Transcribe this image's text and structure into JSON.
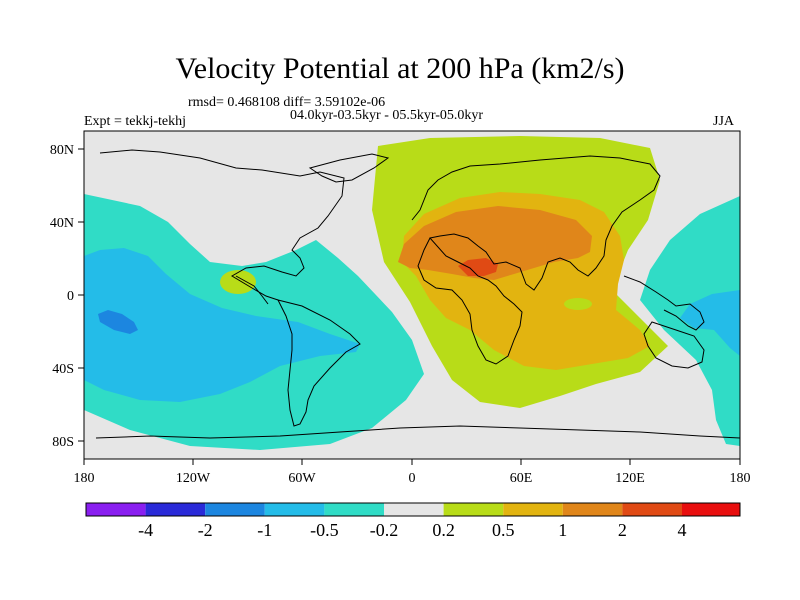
{
  "header": {
    "title": "Velocity Potential at 200 hPa (km2/s)",
    "stats": "rmsd= 0.468108 diff= 3.59102e-06",
    "period": "04.0kyr-03.5kyr - 05.5kyr-05.0kyr",
    "experiment": "Expt = tekkj-tekhj",
    "season": "JJA"
  },
  "axes": {
    "x_ticks": [
      "180",
      "120W",
      "60W",
      "0",
      "60E",
      "120E",
      "180"
    ],
    "y_ticks": [
      "80N",
      "40N",
      "0",
      "40S",
      "80S"
    ]
  },
  "colorbar": {
    "labels": [
      "-4",
      "-2",
      "-1",
      "-0.5",
      "-0.2",
      "0.2",
      "0.5",
      "1",
      "2",
      "4"
    ],
    "colors": [
      "#8a1ff0",
      "#2a2ad8",
      "#1c86e0",
      "#24bce8",
      "#30dcc6",
      "#e6e6e6",
      "#b8dc18",
      "#e2b410",
      "#e0861a",
      "#e04a14",
      "#e80e0e"
    ]
  },
  "map": {
    "background_color": "#e6e6e6",
    "coastline_color": "#000000"
  }
}
